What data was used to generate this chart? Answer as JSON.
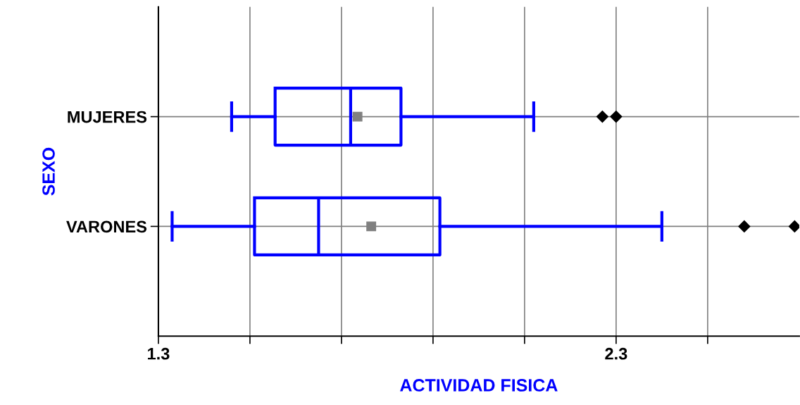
{
  "chart_data": {
    "type": "box",
    "orientation": "horizontal",
    "categories": [
      "MUJERES",
      "VARONES"
    ],
    "boxes": [
      {
        "low": 1.46,
        "q1": 1.555,
        "median": 1.72,
        "q3": 1.83,
        "high": 2.12,
        "mean": 1.735,
        "outliers": [
          2.27,
          2.3
        ]
      },
      {
        "low": 1.33,
        "q1": 1.51,
        "median": 1.65,
        "q3": 1.915,
        "high": 2.4,
        "mean": 1.765,
        "outliers": [
          2.58,
          2.69
        ]
      }
    ],
    "color": "#0000ff",
    "xlim": [
      1.3,
      2.7
    ],
    "xticks": [
      1.3,
      {
        "value": 1.5,
        "label": null
      },
      {
        "value": 1.7,
        "label": null
      },
      {
        "value": 1.9,
        "label": null
      },
      {
        "value": 2.1,
        "label": null
      },
      2.3,
      {
        "value": 2.5,
        "label": null
      }
    ],
    "xlabel": "ACTIVIDAD FISICA",
    "ylabel": "SEXO",
    "grid": true
  }
}
